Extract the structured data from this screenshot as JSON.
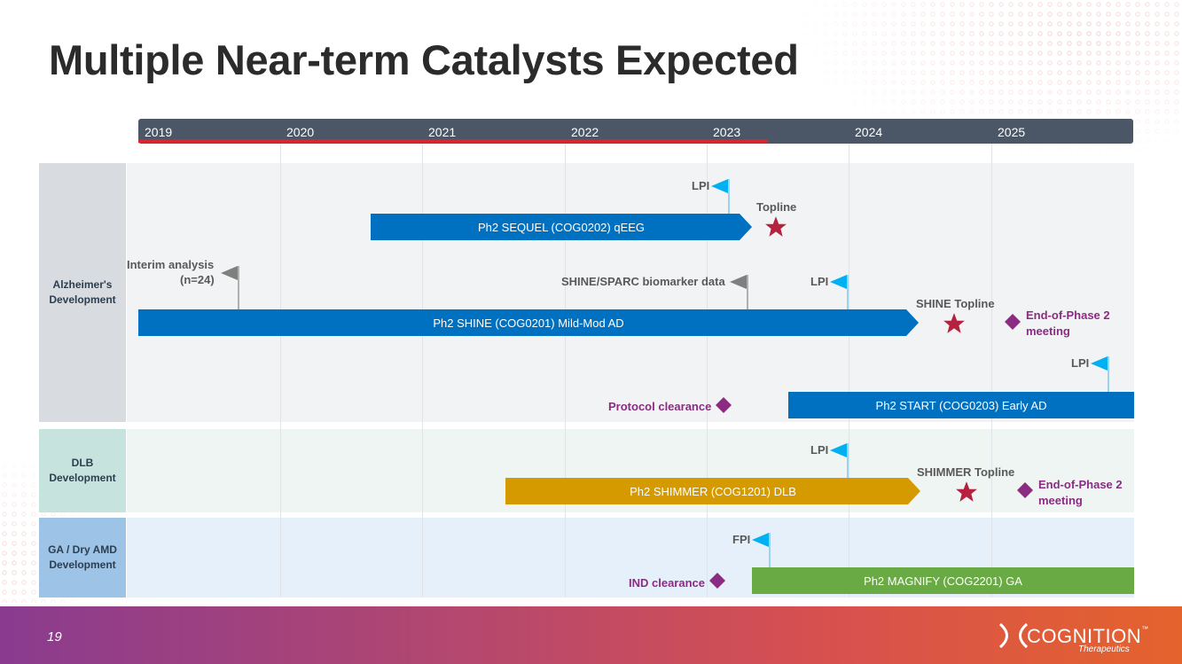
{
  "page": {
    "title": "Multiple Near-term Catalysts Expected",
    "page_number": "19"
  },
  "logo": {
    "name": "COGNITION",
    "tm": "™",
    "subtitle": "Therapeutics"
  },
  "timeline": {
    "years": [
      "2019",
      "2020",
      "2021",
      "2022",
      "2023",
      "2024",
      "2025"
    ]
  },
  "rows": {
    "alz": "Alzheimer's Development",
    "dlb": "DLB Development",
    "ga": "GA / Dry AMD Development"
  },
  "bars": {
    "sequel": "Ph2 SEQUEL (COG0202) qEEG",
    "shine": "Ph2 SHINE (COG0201) Mild-Mod AD",
    "start": "Ph2 START (COG0203) Early AD",
    "shimmer": "Ph2 SHIMMER (COG1201) DLB",
    "magnify": "Ph2 MAGNIFY (COG2201) GA"
  },
  "labels": {
    "lpi": "LPI",
    "fpi": "FPI",
    "topline": "Topline",
    "interim_line1": "Interim analysis",
    "interim_line2": "(n=24)",
    "shine_sparc": "SHINE/SPARC biomarker data",
    "shine_topline": "SHINE Topline",
    "shimmer_topline": "SHIMMER Topline",
    "eop2_line1": "End-of-Phase 2",
    "eop2_line2": "meeting",
    "protocol_clearance": "Protocol clearance",
    "ind_clearance": "IND clearance"
  },
  "colors": {
    "timeline": "#4b5767",
    "progress": "#d7262e",
    "bar_blue": "#0070c0",
    "bar_gold": "#d49a00",
    "bar_green": "#6aaa45",
    "flag": "#00b0f0",
    "star": "#b5223f",
    "diamond": "#8b2c82",
    "grey_flag": "#7f7f7f"
  }
}
